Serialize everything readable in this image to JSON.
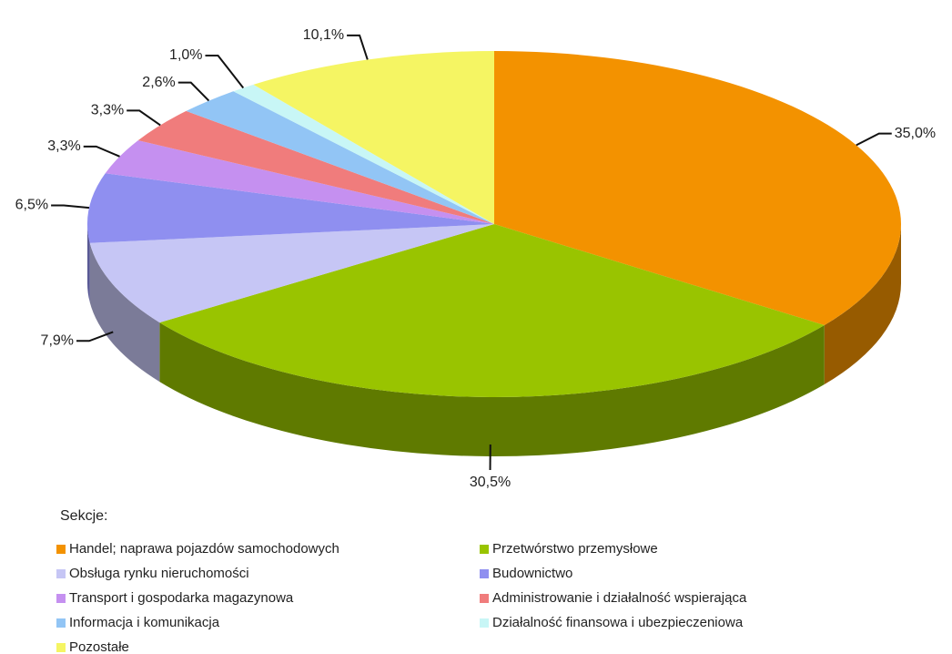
{
  "chart_data": {
    "type": "pie3d",
    "legend_title": "Sekcje:",
    "categories": [
      "Handel; naprawa pojazdów samochodowych",
      "Przetwórstwo przemysłowe",
      "Obsługa rynku nieruchomości",
      "Budownictwo",
      "Transport i gospodarka magazynowa",
      "Administrowanie i działalność wspierająca",
      "Informacja i komunikacja",
      "Działalność finansowa i ubezpieczeniowa",
      "Pozostałe"
    ],
    "values": [
      35.0,
      30.5,
      7.9,
      6.5,
      3.3,
      3.3,
      2.6,
      1.0,
      10.1
    ],
    "value_labels": [
      "35,0%",
      "30,5%",
      "7,9%",
      "6,5%",
      "3,3%",
      "3,3%",
      "2,6%",
      "1,0%",
      "10,1%"
    ],
    "colors": [
      "#f39200",
      "#99c400",
      "#c6c6f5",
      "#8f8ff0",
      "#c590f0",
      "#f07c7c",
      "#92c5f5",
      "#c8f6f6",
      "#f5f563"
    ],
    "legend": "bottom"
  }
}
